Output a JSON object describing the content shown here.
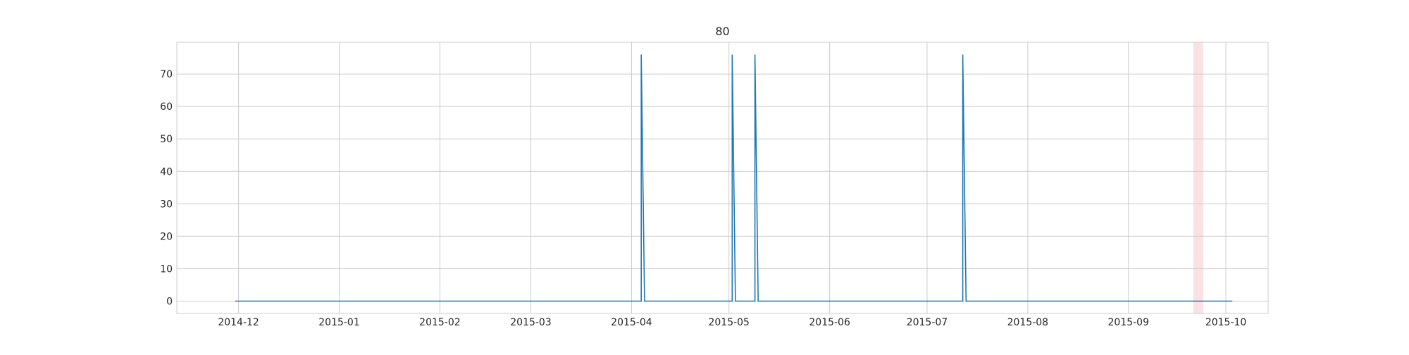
{
  "chart_data": {
    "type": "line",
    "title": "80",
    "xlabel": "",
    "ylabel": "",
    "x_range": [
      "2014-11-12",
      "2015-10-14"
    ],
    "ylim": [
      -3.8,
      79.8
    ],
    "grid": true,
    "x_ticks": [
      "2014-12",
      "2015-01",
      "2015-02",
      "2015-03",
      "2015-04",
      "2015-05",
      "2015-06",
      "2015-07",
      "2015-08",
      "2015-09",
      "2015-10"
    ],
    "y_ticks": [
      0,
      10,
      20,
      30,
      40,
      50,
      60,
      70
    ],
    "series": [
      {
        "color": "#1f77b4",
        "x": [
          "2014-11-30",
          "2015-04-04",
          "2015-04-04",
          "2015-04-05",
          "2015-05-02",
          "2015-05-02",
          "2015-05-03",
          "2015-05-09",
          "2015-05-09",
          "2015-05-10",
          "2015-07-12",
          "2015-07-12",
          "2015-07-13",
          "2015-10-03"
        ],
        "y": [
          0,
          0,
          76,
          0,
          0,
          76,
          0,
          0,
          76,
          0,
          0,
          76,
          0,
          0
        ]
      }
    ],
    "shaded_spans": [
      {
        "start": "2015-09-21",
        "end": "2015-09-24",
        "color": "#f8c8cc"
      }
    ]
  }
}
